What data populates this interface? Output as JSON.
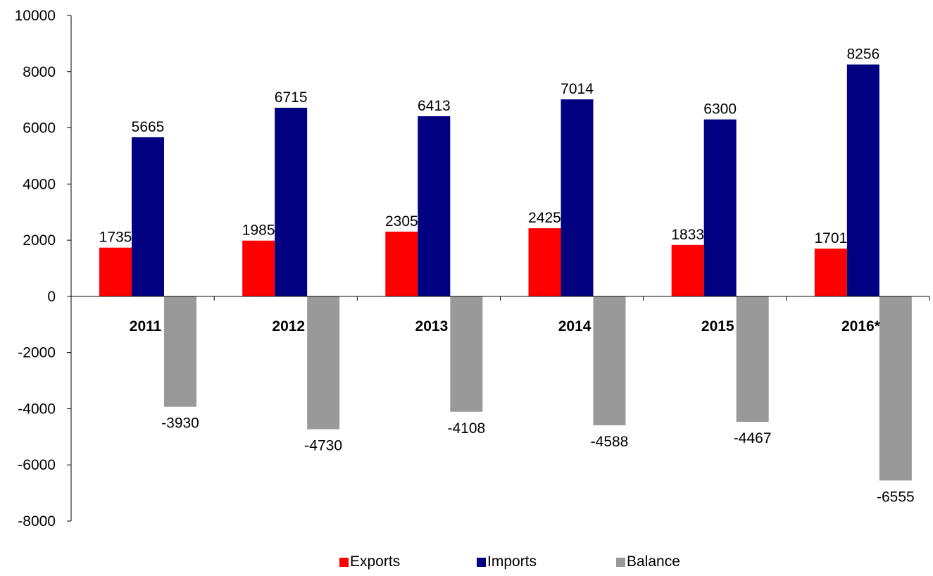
{
  "chart_data": {
    "type": "bar",
    "categories": [
      "2011",
      "2012",
      "2013",
      "2014",
      "2015",
      "2016*"
    ],
    "series": [
      {
        "name": "Exports",
        "color": "#FF0000",
        "values": [
          1735,
          1985,
          2305,
          2425,
          1833,
          1701
        ]
      },
      {
        "name": "Imports",
        "color": "#000080",
        "values": [
          5665,
          6715,
          6413,
          7014,
          6300,
          8256
        ]
      },
      {
        "name": "Balance",
        "color": "#999999",
        "values": [
          -3930,
          -4730,
          -4108,
          -4588,
          -4467,
          -6555
        ]
      }
    ],
    "data_labels": [
      [
        "1735",
        "1985",
        "2305",
        "2425",
        "1833",
        "1701"
      ],
      [
        "5665",
        "6715",
        "6413",
        "7014",
        "6300",
        "8256"
      ],
      [
        "-3930",
        "-4730",
        "-4108",
        "-4588",
        "-4467",
        "-6555"
      ]
    ],
    "yticks": [
      10000,
      8000,
      6000,
      4000,
      2000,
      0,
      -2000,
      -4000,
      -6000,
      -8000
    ],
    "ytick_labels": [
      "10000",
      "8000",
      "6000",
      "4000",
      "2000",
      "0",
      "-2000",
      "-4000",
      "-6000",
      "-8000"
    ],
    "ylim": [
      -8000,
      10000
    ],
    "grid": false,
    "legend_position": "bottom"
  }
}
